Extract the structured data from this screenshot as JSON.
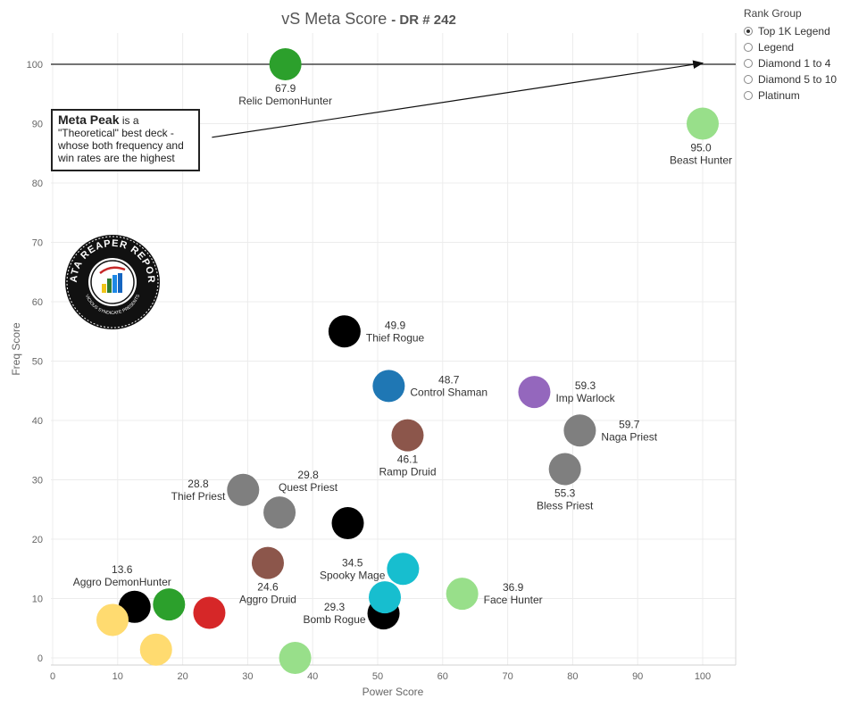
{
  "title": {
    "main": "vS Meta Score",
    "sub": "- DR # 242"
  },
  "legend": {
    "title": "Rank Group",
    "items": [
      {
        "label": "Top 1K Legend",
        "selected": true
      },
      {
        "label": "Legend",
        "selected": false
      },
      {
        "label": "Diamond 1 to 4",
        "selected": false
      },
      {
        "label": "Diamond 5 to 10",
        "selected": false
      },
      {
        "label": "Platinum",
        "selected": false
      }
    ]
  },
  "annotation": {
    "strong": "Meta Peak",
    "text1": " is a",
    "text2": "\"Theoretical\" best deck -",
    "text3": "whose both frequency and",
    "text4": "win rates are the highest"
  },
  "logo": {
    "ring_text": "DATA REAPER REPORT",
    "sub_text": "VICIOUS SYNDICATE PRESENTS"
  },
  "chart_data": {
    "type": "scatter",
    "xlabel": "Power Score",
    "ylabel": "Freq Score",
    "xlim": [
      0,
      105
    ],
    "ylim": [
      -1,
      105
    ],
    "xticks": [
      0,
      10,
      20,
      30,
      40,
      50,
      60,
      70,
      80,
      90,
      100
    ],
    "yticks": [
      0,
      10,
      20,
      30,
      40,
      50,
      60,
      70,
      80,
      90,
      100
    ],
    "grid": true,
    "reference_line_y": 100,
    "arrow": {
      "from": [
        24.5,
        87.7
      ],
      "to": [
        100,
        100.2
      ]
    },
    "points": [
      {
        "name": "Relic DemonHunter",
        "score": "67.9",
        "x": 35.8,
        "y": 100,
        "color": "#2ca02c"
      },
      {
        "name": "Beast Hunter",
        "score": "95.0",
        "x": 100,
        "y": 90,
        "color": "#98df8a"
      },
      {
        "name": "Thief Rogue",
        "score": "49.9",
        "x": 44.9,
        "y": 55,
        "color": "#000000"
      },
      {
        "name": "Control Shaman",
        "score": "48.7",
        "x": 51.7,
        "y": 45.8,
        "color": "#1f77b4"
      },
      {
        "name": "Imp Warlock",
        "score": "59.3",
        "x": 74.1,
        "y": 44.8,
        "color": "#9467bd"
      },
      {
        "name": "Naga Priest",
        "score": "59.7",
        "x": 81.1,
        "y": 38.3,
        "color": "#7f7f7f"
      },
      {
        "name": "Ramp Druid",
        "score": "46.1",
        "x": 54.6,
        "y": 37.5,
        "color": "#8c564b"
      },
      {
        "name": "Bless Priest",
        "score": "55.3",
        "x": 78.8,
        "y": 31.8,
        "color": "#7f7f7f"
      },
      {
        "name": "Thief Priest",
        "score": "28.8",
        "x": 29.3,
        "y": 28.3,
        "color": "#7f7f7f"
      },
      {
        "name": "Quest Priest",
        "score": "29.8",
        "x": 34.9,
        "y": 24.5,
        "color": "#7f7f7f"
      },
      {
        "name": "",
        "score": "",
        "x": 45.4,
        "y": 22.7,
        "color": "#000000"
      },
      {
        "name": "Aggro Druid",
        "score": "24.6",
        "x": 33.1,
        "y": 16,
        "color": "#8c564b"
      },
      {
        "name": "Spooky Mage",
        "score": "34.5",
        "x": 53.9,
        "y": 15,
        "color": "#17becf"
      },
      {
        "name": "Face Hunter",
        "score": "36.9",
        "x": 63,
        "y": 10.8,
        "color": "#98df8a"
      },
      {
        "name": "Aggro DemonHunter",
        "score": "13.6",
        "x": 12.6,
        "y": 8.6,
        "color": "#000000"
      },
      {
        "name": "",
        "score": "",
        "x": 17.9,
        "y": 9,
        "color": "#2ca02c"
      },
      {
        "name": "",
        "score": "",
        "x": 24.1,
        "y": 7.6,
        "color": "#d62728"
      },
      {
        "name": "",
        "score": "",
        "x": 9.2,
        "y": 6.4,
        "color": "#ffdb70"
      },
      {
        "name": "",
        "score": "",
        "x": 15.9,
        "y": 1.4,
        "color": "#ffdb70"
      },
      {
        "name": "Bomb Rogue",
        "score": "29.3",
        "x": 50.9,
        "y": 7.5,
        "color": "#000000"
      },
      {
        "name": "",
        "score": "",
        "x": 51.1,
        "y": 10.2,
        "color": "#17becf"
      },
      {
        "name": "",
        "score": "",
        "x": 37.3,
        "y": 0,
        "color": "#98df8a"
      }
    ]
  }
}
